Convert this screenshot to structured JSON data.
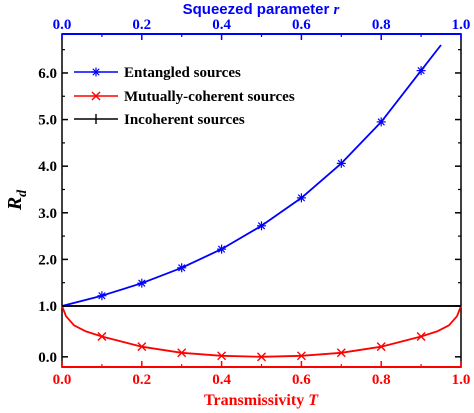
{
  "chart_data": {
    "type": "line",
    "title": "",
    "x_bottom": {
      "label": "Transmissivity",
      "label_var": "T",
      "range": [
        0.0,
        1.0
      ],
      "ticks": [
        "0.0",
        "0.2",
        "0.4",
        "0.6",
        "0.8",
        "1.0"
      ],
      "color": "#ff0000"
    },
    "x_top": {
      "label": "Squeezed parameter",
      "label_var": "r",
      "range": [
        0.0,
        1.0
      ],
      "ticks": [
        "0.0",
        "0.2",
        "0.4",
        "0.6",
        "0.8",
        "1.0"
      ],
      "color": "#0000ff"
    },
    "y_upper": {
      "range": [
        1.0,
        6.6
      ],
      "ticks": [
        "1.0",
        "2.0",
        "3.0",
        "4.0",
        "5.0",
        "6.0"
      ]
    },
    "y_lower": {
      "range": [
        -0.2,
        1.0
      ],
      "ticks": [
        "0.0"
      ]
    },
    "ylabel": "R",
    "ylabel_sub": "d",
    "grid": false,
    "legend_position": "top-left",
    "series": [
      {
        "name": "Entangled sources",
        "axis": "top",
        "color": "#0000ff",
        "marker": "asterisk",
        "x": [
          0.0,
          0.1,
          0.2,
          0.3,
          0.4,
          0.5,
          0.6,
          0.7,
          0.8,
          0.9,
          0.95
        ],
        "y": [
          1.0,
          1.22,
          1.49,
          1.82,
          2.22,
          2.72,
          3.32,
          4.06,
          4.95,
          6.05,
          6.6
        ],
        "marker_x": [
          0.1,
          0.2,
          0.3,
          0.4,
          0.5,
          0.6,
          0.7,
          0.8,
          0.9
        ],
        "marker_y": [
          1.22,
          1.49,
          1.82,
          2.22,
          2.72,
          3.32,
          4.06,
          4.95,
          6.05
        ]
      },
      {
        "name": "Mutually-coherent sources",
        "axis": "bottom",
        "color": "#ff0000",
        "marker": "x",
        "x": [
          0.0,
          0.01,
          0.03,
          0.06,
          0.1,
          0.2,
          0.3,
          0.4,
          0.5,
          0.6,
          0.7,
          0.8,
          0.9,
          0.94,
          0.97,
          0.99,
          1.0
        ],
        "y": [
          1.0,
          0.8,
          0.62,
          0.5,
          0.4,
          0.2,
          0.08,
          0.02,
          0.0,
          0.02,
          0.08,
          0.2,
          0.4,
          0.5,
          0.62,
          0.8,
          1.0
        ],
        "marker_x": [
          0.1,
          0.2,
          0.3,
          0.4,
          0.5,
          0.6,
          0.7,
          0.8,
          0.9
        ],
        "marker_y": [
          0.4,
          0.2,
          0.08,
          0.02,
          0.0,
          0.02,
          0.08,
          0.2,
          0.4
        ]
      },
      {
        "name": "Incoherent sources",
        "axis": "bottom",
        "color": "#000000",
        "marker": "plus",
        "x": [
          0.0,
          1.0
        ],
        "y": [
          1.0,
          1.0
        ],
        "marker_x": [],
        "marker_y": []
      }
    ]
  }
}
